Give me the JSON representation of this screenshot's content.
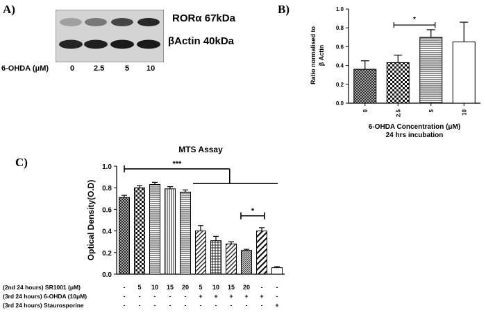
{
  "panelA": {
    "label": "A)",
    "bands": [
      "RORα 67kDa",
      "βActin 40kDa"
    ],
    "treatment_label": "6-OHDA (μM)",
    "doses": [
      "0",
      "2.5",
      "5",
      "10"
    ],
    "band_intensity": {
      "ror": [
        0.35,
        0.55,
        0.8,
        0.95
      ],
      "actin": [
        0.9,
        0.92,
        0.95,
        0.95
      ]
    }
  },
  "chart_data": [
    {
      "panel": "B)",
      "type": "bar",
      "categories": [
        "0",
        "2.5",
        "5",
        "10"
      ],
      "values": [
        0.36,
        0.43,
        0.7,
        0.65
      ],
      "errors": [
        0.09,
        0.08,
        0.08,
        0.21
      ],
      "patterns": [
        "crosshatch",
        "checker",
        "hlines",
        "none"
      ],
      "ylabel_lines": [
        "Ratio normalised to",
        "β Actin"
      ],
      "xlabel_lines": [
        "6-OHDA Concentration (μM)",
        "24 hrs incubation"
      ],
      "ylim": [
        0,
        1.0
      ],
      "yticks": [
        "0.0",
        "0.2",
        "0.4",
        "0.6",
        "0.8",
        "1.0"
      ],
      "significance": [
        {
          "from": 1,
          "to": 2,
          "label": "*"
        }
      ]
    },
    {
      "panel": "C)",
      "type": "bar",
      "title": "MTS Assay",
      "ylabel": "Optical Density(O.D)",
      "ylim": [
        0,
        1.0
      ],
      "yticks": [
        "0.0",
        "0.2",
        "0.4",
        "0.6",
        "0.8",
        "1.0"
      ],
      "values": [
        0.71,
        0.8,
        0.83,
        0.79,
        0.76,
        0.4,
        0.31,
        0.28,
        0.22,
        0.4,
        0.06
      ],
      "errors": [
        0.02,
        0.02,
        0.02,
        0.02,
        0.02,
        0.05,
        0.04,
        0.02,
        0.01,
        0.03,
        0.01
      ],
      "patterns": [
        "crosshatch",
        "checker",
        "hlines",
        "vlines",
        "hlines",
        "diagonal",
        "grid",
        "diagonal",
        "diagonal-dense",
        "diagonal-bold",
        "none"
      ],
      "row_labels": [
        "(2nd 24 hours) SR1001 (μM)",
        "(3rd 24 hours) 6-OHDA (10μM)",
        "(3rd 24 hours) Staurosporine"
      ],
      "rows": [
        [
          "-",
          "5",
          "10",
          "15",
          "20",
          "5",
          "10",
          "15",
          "20",
          "-",
          "-"
        ],
        [
          "-",
          "-",
          "-",
          "-",
          "-",
          "+",
          "+",
          "+",
          "+",
          "+",
          "-"
        ],
        [
          "-",
          "-",
          "-",
          "-",
          "-",
          "-",
          "-",
          "-",
          "-",
          "-",
          "+"
        ]
      ],
      "significance": [
        {
          "label": "***"
        },
        {
          "from": 8,
          "to": 9,
          "label": "*"
        }
      ]
    }
  ]
}
